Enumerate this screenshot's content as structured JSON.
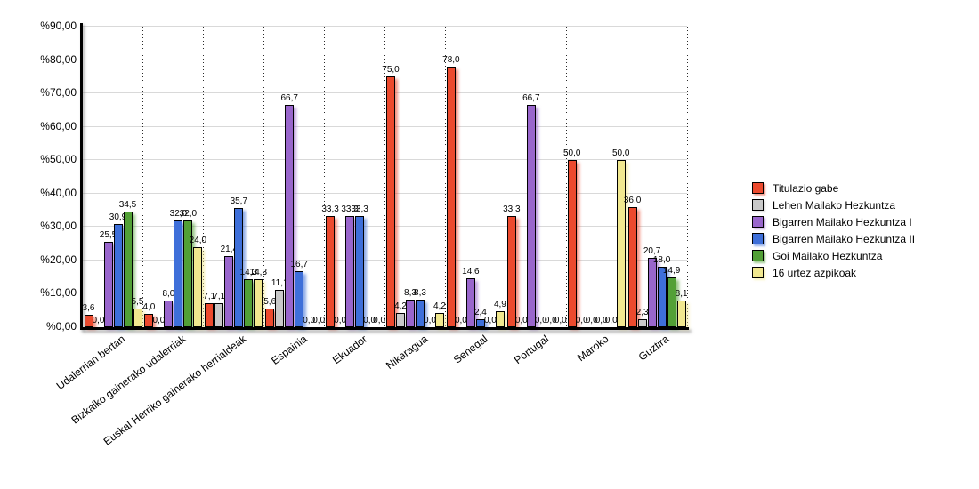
{
  "chart_data": {
    "type": "bar",
    "title": "",
    "xlabel": "",
    "ylabel": "",
    "ylim": [
      0,
      90
    ],
    "legend_position": "right",
    "grid": {
      "horizontal_lines": true,
      "vertical_dotted_separators": true
    },
    "value_label_decimal_separator": ",",
    "yticks": [
      {
        "value": 90,
        "label": "%90,00"
      },
      {
        "value": 80,
        "label": "%80,00"
      },
      {
        "value": 70,
        "label": "%70,00"
      },
      {
        "value": 60,
        "label": "%60,00"
      },
      {
        "value": 50,
        "label": "%50,00"
      },
      {
        "value": 40,
        "label": "%40,00"
      },
      {
        "value": 30,
        "label": "%30,00"
      },
      {
        "value": 20,
        "label": "%20,00"
      },
      {
        "value": 10,
        "label": "%10,00"
      },
      {
        "value": 0,
        "label": "%0,00"
      }
    ],
    "categories": [
      "Udalerrian bertan",
      "Bizkaiko gainerako udalerriak",
      "Euskal Herriko gainerako herrialdeak",
      "Espainia",
      "Ekuador",
      "Nikaragua",
      "Senegal",
      "Portugal",
      "Maroko",
      "Guztira"
    ],
    "series": [
      {
        "name": "Titulazio gabe",
        "color": "#EC4A2E",
        "values": [
          3.6,
          4.0,
          7.1,
          5.6,
          33.3,
          75.0,
          78.0,
          33.3,
          50.0,
          36.0
        ],
        "labels": [
          "3,6",
          "4,0",
          "7,1",
          "5,6",
          "33,3",
          "75,0",
          "78,0",
          "33,3",
          "50,0",
          "36,0"
        ]
      },
      {
        "name": "Lehen Mailako Hezkuntza",
        "color": "#C9C9C9",
        "values": [
          0.0,
          0.0,
          7.1,
          11.1,
          0.0,
          4.2,
          0.0,
          0.0,
          0.0,
          2.3
        ],
        "labels": [
          "0,0",
          "0,0",
          "7,1",
          "11,1",
          "0,0",
          "4,2",
          "0,0",
          "0,0",
          "0,0",
          "2,3"
        ]
      },
      {
        "name": "Bigarren Mailako Hezkuntza I",
        "color": "#9966CC",
        "values": [
          25.5,
          8.0,
          21.4,
          66.7,
          33.3,
          8.3,
          14.6,
          66.7,
          0.0,
          20.7
        ],
        "labels": [
          "25,5",
          "8,0",
          "21,4",
          "66,7",
          "33,3",
          "8,3",
          "14,6",
          "66,7",
          "0,0",
          "20,7"
        ]
      },
      {
        "name": "Bigarren Mailako Hezkuntza II",
        "color": "#3E6FD9",
        "values": [
          30.9,
          32.0,
          35.7,
          16.7,
          33.3,
          8.3,
          2.4,
          0.0,
          0.0,
          18.0
        ],
        "labels": [
          "30,9",
          "32,0",
          "35,7",
          "16,7",
          "33,3",
          "8,3",
          "2,4",
          "0,0",
          "0,0",
          "18,0"
        ]
      },
      {
        "name": "Goi Mailako Hezkuntza",
        "color": "#52A036",
        "values": [
          34.5,
          32.0,
          14.3,
          0.0,
          0.0,
          0.0,
          0.0,
          0.0,
          0.0,
          14.9
        ],
        "labels": [
          "34,5",
          "32,0",
          "14,3",
          "0,0",
          "0,0",
          "0,0",
          "0,0",
          "0,0",
          "0,0",
          "14,9"
        ]
      },
      {
        "name": "16 urtez azpikoak",
        "color": "#F1E88F",
        "values": [
          5.5,
          24.0,
          14.3,
          0.0,
          0.0,
          4.2,
          4.9,
          0.0,
          50.0,
          8.1
        ],
        "labels": [
          "5,5",
          "24,0",
          "14,3",
          "0,0",
          "0,0",
          "4,2",
          "4,9",
          "0,0",
          "50,0",
          "8,1"
        ]
      }
    ]
  }
}
